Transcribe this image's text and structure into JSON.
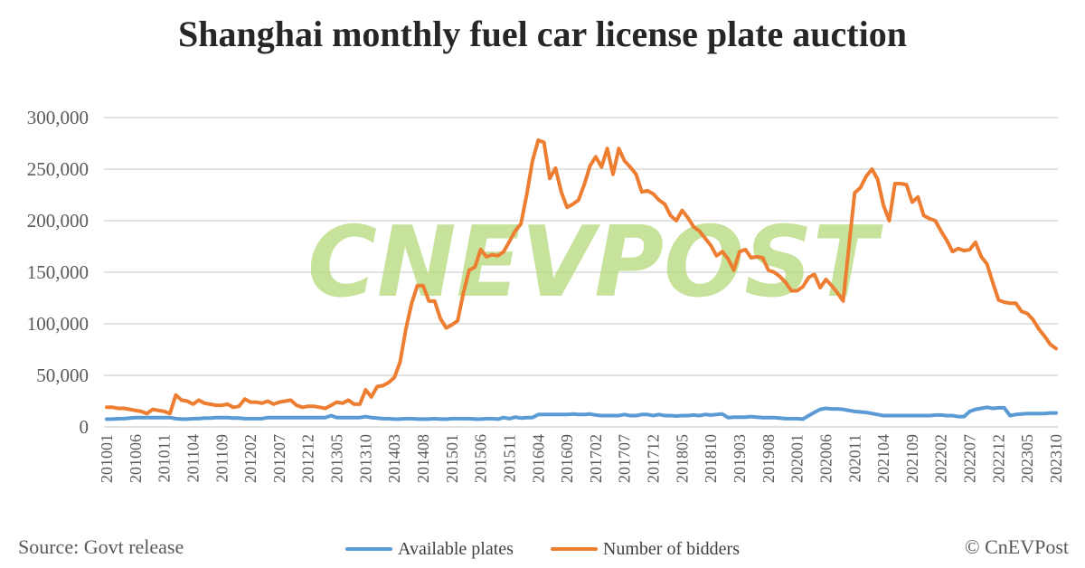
{
  "chart_data": {
    "type": "line",
    "title": "Shanghai monthly fuel car license plate auction",
    "ylim": [
      0,
      300000
    ],
    "yticks": [
      0,
      50000,
      100000,
      150000,
      200000,
      250000,
      300000
    ],
    "ytick_labels": [
      "0",
      "50,000",
      "100,000",
      "150,000",
      "200,000",
      "250,000",
      "300,000"
    ],
    "x_start": "201001",
    "x_end": "202310",
    "x_tick_every_months": 5,
    "grid": true,
    "legend_position": "bottom",
    "series": [
      {
        "name": "Available plates",
        "color": "#5B9BD5",
        "values": [
          7500,
          7500,
          8000,
          8000,
          8500,
          9000,
          9000,
          9000,
          9000,
          9000,
          9000,
          9000,
          8000,
          7500,
          7500,
          8000,
          8000,
          8500,
          8500,
          9000,
          9000,
          9000,
          8500,
          8500,
          8000,
          8000,
          8000,
          8000,
          9000,
          9000,
          9000,
          9000,
          9000,
          9000,
          9000,
          9000,
          9000,
          9000,
          9000,
          11000,
          9000,
          9000,
          9000,
          9000,
          9000,
          10000,
          9000,
          8500,
          8000,
          8000,
          7500,
          7500,
          8000,
          8000,
          7500,
          7500,
          7500,
          8000,
          7500,
          7500,
          8000,
          8000,
          8000,
          8000,
          7500,
          7500,
          8000,
          8000,
          7500,
          9000,
          8000,
          9500,
          8500,
          9000,
          9000,
          12000,
          12000,
          12000,
          12000,
          12000,
          12000,
          12500,
          12000,
          12000,
          12500,
          11500,
          11000,
          11000,
          11000,
          11000,
          12000,
          11000,
          11000,
          12000,
          12000,
          11000,
          12000,
          11000,
          11000,
          10500,
          11000,
          11000,
          11500,
          11000,
          12000,
          11500,
          12000,
          12500,
          9000,
          9500,
          9500,
          9500,
          10000,
          9500,
          9000,
          9000,
          9000,
          8500,
          8000,
          8000,
          8000,
          7500,
          11000,
          14000,
          17000,
          18000,
          17500,
          17500,
          17000,
          16000,
          15000,
          14500,
          14000,
          13000,
          12000,
          11000,
          11000,
          11000,
          11000,
          11000,
          11000,
          11000,
          11000,
          11000,
          11500,
          11500,
          11000,
          11000,
          10000,
          10000,
          15000,
          17000,
          18000,
          19000,
          18000,
          18500,
          18500,
          11000,
          12000,
          12500,
          13000,
          13000,
          13000,
          13000,
          13500,
          13500
        ]
      },
      {
        "name": "Number of bidders",
        "color": "#ED7D31",
        "values": [
          19000,
          19000,
          18000,
          18000,
          17000,
          16000,
          15000,
          13000,
          17000,
          16000,
          15000,
          13000,
          31000,
          26000,
          25000,
          22000,
          26000,
          23000,
          22000,
          21000,
          21000,
          22000,
          19000,
          20000,
          27000,
          24000,
          24000,
          23000,
          25000,
          22000,
          24000,
          25000,
          26000,
          21000,
          19000,
          20000,
          20000,
          19000,
          18000,
          21000,
          24000,
          23000,
          26000,
          22000,
          22000,
          36000,
          29000,
          39000,
          40000,
          43000,
          48000,
          63000,
          95000,
          120000,
          137000,
          137000,
          122000,
          122000,
          105000,
          96000,
          99000,
          103000,
          130000,
          152000,
          155000,
          172000,
          165000,
          167000,
          166000,
          170000,
          180000,
          190000,
          197000,
          225000,
          258000,
          278000,
          276000,
          241000,
          251000,
          228000,
          213000,
          216000,
          220000,
          235000,
          253000,
          262000,
          252000,
          270000,
          245000,
          270000,
          258000,
          252000,
          245000,
          228000,
          229000,
          226000,
          220000,
          216000,
          205000,
          200000,
          210000,
          203000,
          194000,
          190000,
          183000,
          176000,
          166000,
          170000,
          163000,
          152000,
          170000,
          172000,
          164000,
          165000,
          164000,
          152000,
          150000,
          146000,
          140000,
          132000,
          132000,
          136000,
          145000,
          148000,
          135000,
          143000,
          137000,
          130000,
          122000,
          175000,
          227000,
          232000,
          243000,
          250000,
          240000,
          215000,
          200000,
          236000,
          236000,
          235000,
          218000,
          223000,
          205000,
          202000,
          200000,
          190000,
          181000,
          170000,
          173000,
          171000,
          172000,
          179000,
          165000,
          158000,
          140000,
          123000,
          121000,
          120000,
          120000,
          112000,
          110000,
          104000,
          95000,
          88000,
          80000,
          76000
        ]
      }
    ]
  },
  "footer": {
    "source": "Source: Govt release",
    "credit": "© CnEVPost"
  },
  "watermark": "CNEVPOST"
}
